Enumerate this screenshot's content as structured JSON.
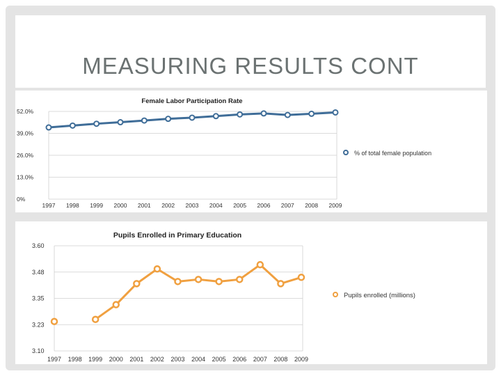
{
  "slide": {
    "title": "MEASURING RESULTS CONT"
  },
  "chart_data": [
    {
      "type": "line",
      "title": "Female Labor Participation Rate",
      "xlabel": "",
      "ylabel": "",
      "categories": [
        "1997",
        "1998",
        "1999",
        "2000",
        "2001",
        "2002",
        "2003",
        "2004",
        "2005",
        "2006",
        "2007",
        "2008",
        "2009"
      ],
      "yticks": [
        "0%",
        "13.0%",
        "26.0%",
        "39.0%",
        "52.0%"
      ],
      "ylim": [
        0,
        52
      ],
      "grid": true,
      "legend_position": "right",
      "series": [
        {
          "name": "% of total female population",
          "values": [
            42.5,
            43.6,
            44.7,
            45.6,
            46.6,
            47.6,
            48.3,
            49.2,
            50.2,
            50.8,
            49.9,
            50.6,
            51.4
          ],
          "color": "#3f6d98"
        }
      ]
    },
    {
      "type": "line",
      "title": "Pupils Enrolled in Primary Education",
      "xlabel": "",
      "ylabel": "",
      "categories": [
        "1997",
        "1998",
        "1999",
        "2000",
        "2001",
        "2002",
        "2003",
        "2004",
        "2005",
        "2006",
        "2007",
        "2008",
        "2009"
      ],
      "yticks": [
        "3.10",
        "3.23",
        "3.35",
        "3.48",
        "3.60"
      ],
      "ylim": [
        3.1,
        3.6
      ],
      "grid": true,
      "legend_position": "right",
      "series": [
        {
          "name": "Pupils enrolled (millions)",
          "values": [
            3.24,
            null,
            3.25,
            3.32,
            3.42,
            3.49,
            3.43,
            3.44,
            3.43,
            3.44,
            3.51,
            3.42,
            3.45
          ],
          "color": "#f0a040"
        }
      ]
    }
  ]
}
